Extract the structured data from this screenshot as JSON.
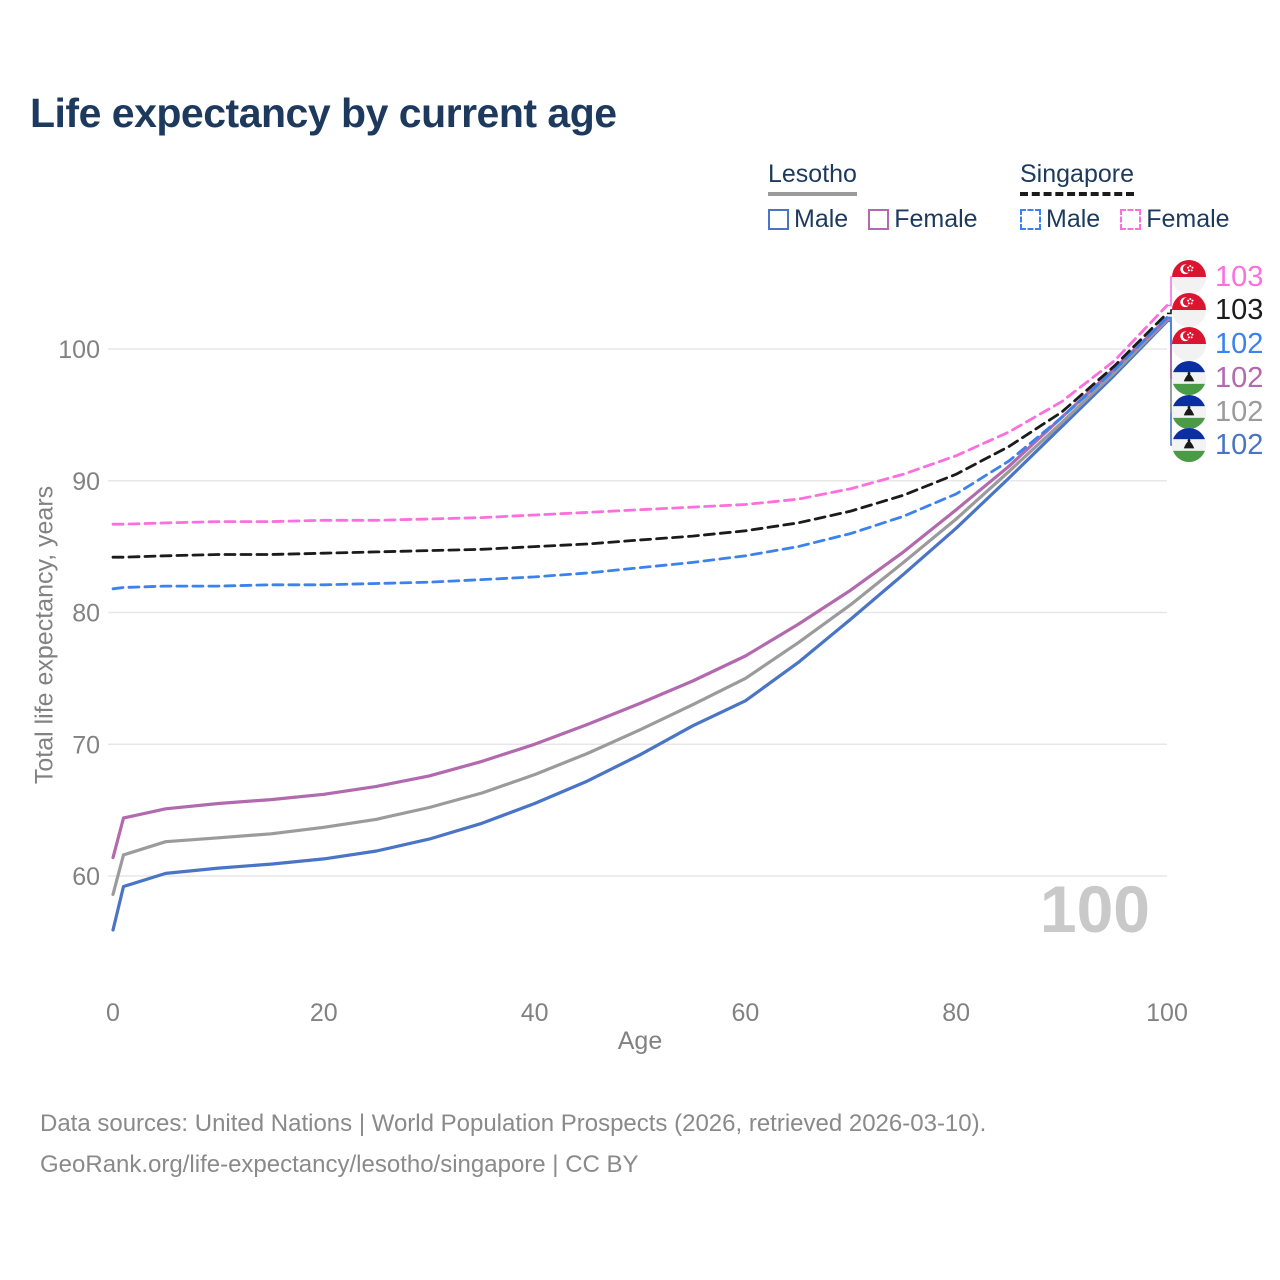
{
  "title": "Life expectancy by current age",
  "legend": {
    "groups": [
      {
        "label": "Lesotho",
        "line_style": "solid",
        "underline_color": "#9b9b9b",
        "items": [
          {
            "label": "Male",
            "color": "#4a75c6"
          },
          {
            "label": "Female",
            "color": "#b269ae"
          }
        ]
      },
      {
        "label": "Singapore",
        "line_style": "dashed",
        "underline_color": "#1b1b1b",
        "items": [
          {
            "label": "Male",
            "color": "#3c82ef"
          },
          {
            "label": "Female",
            "color": "#fb6fdf"
          }
        ]
      }
    ]
  },
  "x_axis": {
    "label": "Age",
    "ticks": [
      0,
      20,
      40,
      60,
      80,
      100
    ]
  },
  "y_axis": {
    "label": "Total life expectancy, years",
    "ticks": [
      60,
      70,
      80,
      90,
      100
    ]
  },
  "watermark": "100",
  "end_labels": [
    {
      "flag": "singapore",
      "value": "103",
      "color": "#fb6fdf",
      "series_id": "singapore-female"
    },
    {
      "flag": "singapore",
      "value": "103",
      "color": "#1b1b1b",
      "series_id": "singapore-both"
    },
    {
      "flag": "singapore",
      "value": "102",
      "color": "#3c82ef",
      "series_id": "singapore-male"
    },
    {
      "flag": "lesotho",
      "value": "102",
      "color": "#b269ae",
      "series_id": "lesotho-female"
    },
    {
      "flag": "lesotho",
      "value": "102",
      "color": "#9b9b9b",
      "series_id": "lesotho-both"
    },
    {
      "flag": "lesotho",
      "value": "102",
      "color": "#4a75c6",
      "series_id": "lesotho-male"
    }
  ],
  "footer": {
    "line1": "Data sources: United Nations | World Population Prospects (2026, retrieved 2026-03-10).",
    "line2": "GeoRank.org/life-expectancy/lesotho/singapore | CC BY"
  },
  "chart_data": {
    "type": "line",
    "title": "Life expectancy by current age",
    "xlabel": "Age",
    "ylabel": "Total life expectancy, years",
    "xlim": [
      0,
      100
    ],
    "ylim": [
      55,
      104
    ],
    "grid": "horizontal",
    "x": [
      0,
      1,
      5,
      10,
      15,
      20,
      25,
      30,
      35,
      40,
      45,
      50,
      55,
      60,
      65,
      70,
      75,
      80,
      85,
      90,
      95,
      100
    ],
    "series": [
      {
        "id": "lesotho-male",
        "name": "Lesotho Male",
        "color": "#4a75c6",
        "dashed": false,
        "values": [
          55.9,
          59.2,
          60.2,
          60.6,
          60.9,
          61.3,
          61.9,
          62.8,
          64.0,
          65.5,
          67.2,
          69.2,
          71.4,
          73.3,
          76.2,
          79.5,
          82.9,
          86.4,
          90.2,
          94.1,
          98.0,
          102.1
        ]
      },
      {
        "id": "lesotho-both",
        "name": "Lesotho",
        "color": "#9b9b9b",
        "dashed": false,
        "values": [
          58.6,
          61.6,
          62.6,
          62.9,
          63.2,
          63.7,
          64.3,
          65.2,
          66.3,
          67.7,
          69.3,
          71.1,
          73.0,
          75.0,
          77.7,
          80.6,
          83.8,
          87.1,
          90.7,
          94.4,
          98.2,
          102.2
        ]
      },
      {
        "id": "lesotho-female",
        "name": "Lesotho Female",
        "color": "#b269ae",
        "dashed": false,
        "values": [
          61.4,
          64.4,
          65.1,
          65.5,
          65.8,
          66.2,
          66.8,
          67.6,
          68.7,
          70.0,
          71.5,
          73.1,
          74.8,
          76.7,
          79.1,
          81.7,
          84.6,
          87.8,
          91.1,
          94.8,
          98.5,
          102.3
        ]
      },
      {
        "id": "singapore-male",
        "name": "Singapore Male",
        "color": "#3c82ef",
        "dashed": true,
        "values": [
          81.8,
          81.9,
          82.0,
          82.0,
          82.1,
          82.1,
          82.2,
          82.3,
          82.5,
          82.7,
          83.0,
          83.4,
          83.8,
          84.3,
          85.0,
          86.0,
          87.3,
          89.0,
          91.5,
          94.8,
          98.4,
          102.4
        ]
      },
      {
        "id": "singapore-both",
        "name": "Singapore",
        "color": "#1b1b1b",
        "dashed": true,
        "values": [
          84.2,
          84.2,
          84.3,
          84.4,
          84.4,
          84.5,
          84.6,
          84.7,
          84.8,
          85.0,
          85.2,
          85.5,
          85.8,
          86.2,
          86.8,
          87.7,
          88.9,
          90.5,
          92.6,
          95.2,
          98.7,
          102.7
        ]
      },
      {
        "id": "singapore-female",
        "name": "Singapore Female",
        "color": "#fb6fdf",
        "dashed": true,
        "values": [
          86.7,
          86.7,
          86.8,
          86.9,
          86.9,
          87.0,
          87.0,
          87.1,
          87.2,
          87.4,
          87.6,
          87.8,
          88.0,
          88.2,
          88.6,
          89.4,
          90.5,
          91.9,
          93.7,
          96.0,
          99.1,
          103.3
        ]
      }
    ]
  }
}
